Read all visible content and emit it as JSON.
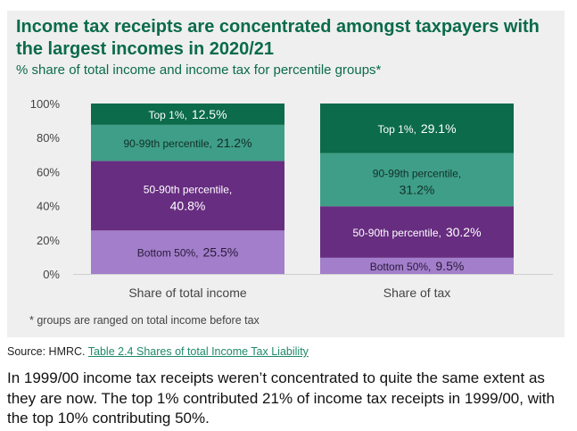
{
  "chart_data": {
    "type": "bar",
    "stacked": true,
    "title": "Income tax receipts are concentrated amongst taxpayers with the largest incomes in 2020/21",
    "subtitle": "% share of total income and income tax for percentile groups*",
    "categories": [
      "Share of total income",
      "Share of tax"
    ],
    "ylim": [
      0,
      100
    ],
    "yticks": [
      "0%",
      "20%",
      "40%",
      "60%",
      "80%",
      "100%"
    ],
    "grid": false,
    "series": [
      {
        "name": "Bottom 50%",
        "values": [
          25.5,
          9.5
        ],
        "labels": [
          "25.5%",
          "9.5%"
        ],
        "color": "#a27ecb"
      },
      {
        "name": "50-90th percentile",
        "values": [
          40.8,
          30.2
        ],
        "labels": [
          "40.8%",
          "30.2%"
        ],
        "color": "#672d80"
      },
      {
        "name": "90-99th percentile",
        "values": [
          21.2,
          31.2
        ],
        "labels": [
          "21.2%",
          "31.2%"
        ],
        "color": "#3f9e87"
      },
      {
        "name": "Top 1%",
        "values": [
          12.5,
          29.1
        ],
        "labels": [
          "12.5%",
          "29.1%"
        ],
        "color": "#0b6b4a"
      }
    ],
    "footnote": "* groups are ranged on total income before tax"
  },
  "source": {
    "prefix": "Source: HMRC.",
    "link": "Table 2.4 Shares of total Income Tax Liability"
  },
  "paragraph": "In 1999/00 income tax receipts weren’t concentrated to quite the same extent as they are now. The top 1% contributed 21% of income tax receipts in 1999/00, with the top 10% contributing 50%."
}
